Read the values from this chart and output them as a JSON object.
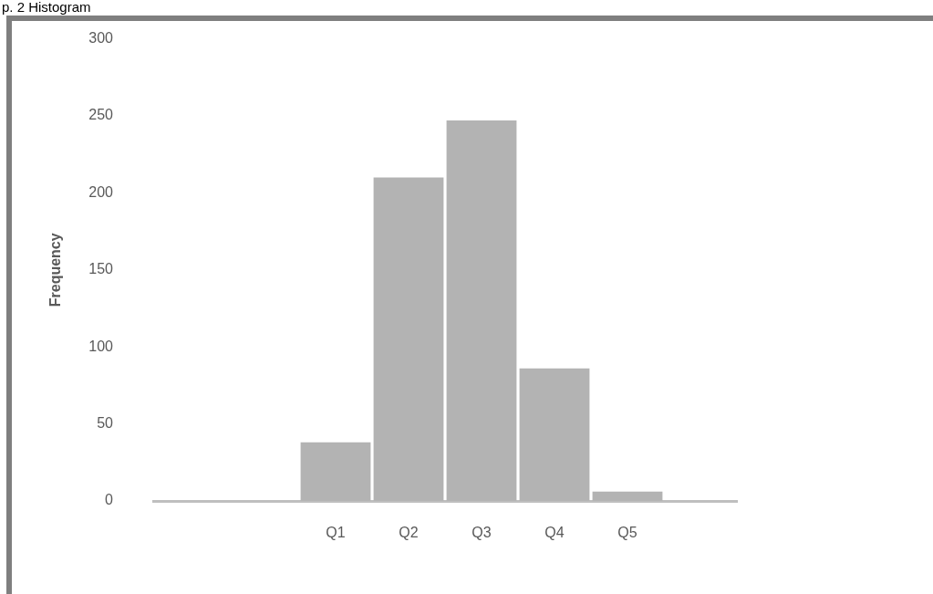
{
  "chart_data": {
    "type": "bar",
    "title": "p. 2 Histogram",
    "ylabel": "Frequency",
    "categories": [
      null,
      null,
      "Q1",
      "Q2",
      "Q3",
      "Q4",
      "Q5",
      null
    ],
    "values": [
      null,
      null,
      38,
      210,
      247,
      86,
      6,
      null
    ],
    "color": "#b3b3b3",
    "ylim": [
      0,
      300
    ],
    "yticks": [
      0,
      50,
      100,
      150,
      200,
      250,
      300
    ]
  }
}
